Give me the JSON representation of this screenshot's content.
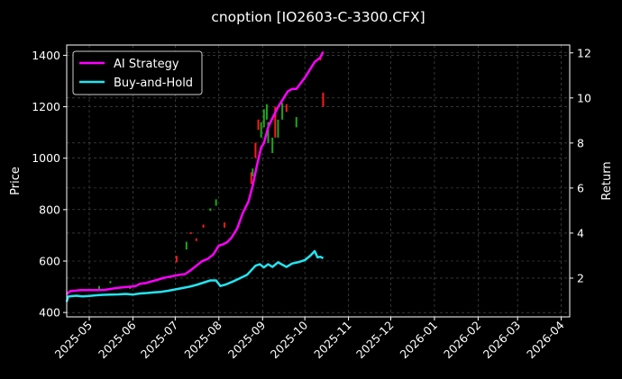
{
  "chart_data": {
    "type": "line",
    "title": "cnoption [IO2603-C-3300.CFX]",
    "xlabel": "",
    "ylabel": "Price",
    "y2label": "Return",
    "x_range": [
      "2025-04-15",
      "2026-04-07"
    ],
    "ylim": [
      383,
      1440
    ],
    "y2lim": [
      0.28,
      12.35
    ],
    "x_ticks": [
      "2025-05",
      "2025-06",
      "2025-07",
      "2025-08",
      "2025-09",
      "2025-10",
      "2025-11",
      "2025-12",
      "2026-01",
      "2026-02",
      "2026-03",
      "2026-04"
    ],
    "y_ticks": [
      400,
      600,
      800,
      1000,
      1200,
      1400
    ],
    "y2_ticks": [
      2,
      4,
      6,
      8,
      10,
      12
    ],
    "grid": true,
    "legend_position": "top-left",
    "colors": {
      "ai": "#ff00ff",
      "bh": "#22e5f2",
      "up": "#1ea51e",
      "down": "#ff1a1a",
      "grid": "#555555",
      "background": "#000000"
    },
    "series": [
      {
        "name": "AI Strategy",
        "axis": "right",
        "x": [
          "2025-04-15",
          "2025-04-16",
          "2025-04-17",
          "2025-04-18",
          "2025-04-22",
          "2025-04-25",
          "2025-05-01",
          "2025-05-08",
          "2025-05-12",
          "2025-05-16",
          "2025-05-20",
          "2025-05-26",
          "2025-05-30",
          "2025-06-03",
          "2025-06-06",
          "2025-06-10",
          "2025-06-14",
          "2025-06-18",
          "2025-06-22",
          "2025-06-26",
          "2025-06-30",
          "2025-07-04",
          "2025-07-08",
          "2025-07-12",
          "2025-07-16",
          "2025-07-20",
          "2025-07-24",
          "2025-07-28",
          "2025-08-01",
          "2025-08-04",
          "2025-08-07",
          "2025-08-10",
          "2025-08-14",
          "2025-08-18",
          "2025-08-22",
          "2025-08-25",
          "2025-08-28",
          "2025-08-31",
          "2025-09-02",
          "2025-09-05",
          "2025-09-08",
          "2025-09-12",
          "2025-09-16",
          "2025-09-19",
          "2025-09-22",
          "2025-09-25",
          "2025-09-28",
          "2025-10-01",
          "2025-10-05",
          "2025-10-08",
          "2025-10-10",
          "2025-10-12",
          "2025-10-14"
        ],
        "values": [
          1.28,
          1.35,
          1.4,
          1.43,
          1.45,
          1.47,
          1.47,
          1.47,
          1.48,
          1.52,
          1.56,
          1.6,
          1.62,
          1.65,
          1.75,
          1.78,
          1.85,
          1.92,
          2.0,
          2.05,
          2.1,
          2.15,
          2.18,
          2.35,
          2.55,
          2.75,
          2.85,
          3.05,
          3.45,
          3.5,
          3.6,
          3.8,
          4.2,
          4.9,
          5.4,
          6.1,
          7.0,
          7.8,
          8.0,
          8.7,
          9.1,
          9.6,
          10.0,
          10.3,
          10.4,
          10.4,
          10.65,
          10.9,
          11.3,
          11.6,
          11.7,
          11.8,
          12.05
        ]
      },
      {
        "name": "Buy-and-Hold",
        "axis": "right",
        "x": [
          "2025-04-15",
          "2025-04-16",
          "2025-04-18",
          "2025-04-22",
          "2025-04-26",
          "2025-05-01",
          "2025-05-06",
          "2025-05-11",
          "2025-05-16",
          "2025-05-22",
          "2025-05-27",
          "2025-06-01",
          "2025-06-06",
          "2025-06-11",
          "2025-06-16",
          "2025-06-21",
          "2025-06-26",
          "2025-07-01",
          "2025-07-06",
          "2025-07-11",
          "2025-07-16",
          "2025-07-21",
          "2025-07-26",
          "2025-07-30",
          "2025-08-02",
          "2025-08-06",
          "2025-08-11",
          "2025-08-16",
          "2025-08-21",
          "2025-08-24",
          "2025-08-27",
          "2025-08-30",
          "2025-09-02",
          "2025-09-05",
          "2025-09-08",
          "2025-09-12",
          "2025-09-15",
          "2025-09-18",
          "2025-09-22",
          "2025-09-26",
          "2025-10-01",
          "2025-10-05",
          "2025-10-08",
          "2025-10-10",
          "2025-10-12",
          "2025-10-14"
        ],
        "values": [
          0.95,
          1.18,
          1.2,
          1.22,
          1.19,
          1.21,
          1.24,
          1.26,
          1.27,
          1.28,
          1.3,
          1.27,
          1.32,
          1.34,
          1.37,
          1.39,
          1.44,
          1.5,
          1.56,
          1.62,
          1.7,
          1.8,
          1.9,
          1.9,
          1.65,
          1.72,
          1.85,
          2.0,
          2.15,
          2.35,
          2.55,
          2.62,
          2.48,
          2.62,
          2.5,
          2.7,
          2.6,
          2.5,
          2.65,
          2.7,
          2.8,
          3.0,
          3.2,
          2.92,
          2.95,
          2.88
        ]
      },
      {
        "name": "",
        "type": "candlestick",
        "axis": "left",
        "candles": [
          {
            "x": "2025-05-08",
            "low": 490,
            "high": 503,
            "dir": "up"
          },
          {
            "x": "2025-05-16",
            "low": 514,
            "high": 522,
            "dir": "up"
          },
          {
            "x": "2025-05-30",
            "low": 492,
            "high": 498,
            "dir": "up"
          },
          {
            "x": "2025-06-09",
            "low": 512,
            "high": 518,
            "dir": "down"
          },
          {
            "x": "2025-07-02",
            "low": 595,
            "high": 620,
            "dir": "down"
          },
          {
            "x": "2025-07-09",
            "low": 645,
            "high": 675,
            "dir": "up"
          },
          {
            "x": "2025-07-12",
            "low": 705,
            "high": 712,
            "dir": "down"
          },
          {
            "x": "2025-07-16",
            "low": 678,
            "high": 688,
            "dir": "down"
          },
          {
            "x": "2025-07-21",
            "low": 730,
            "high": 742,
            "dir": "down"
          },
          {
            "x": "2025-07-26",
            "low": 795,
            "high": 805,
            "dir": "up"
          },
          {
            "x": "2025-07-30",
            "low": 815,
            "high": 840,
            "dir": "up"
          },
          {
            "x": "2025-08-05",
            "low": 730,
            "high": 750,
            "dir": "down"
          },
          {
            "x": "2025-08-24",
            "low": 900,
            "high": 945,
            "dir": "down"
          },
          {
            "x": "2025-08-25",
            "low": 930,
            "high": 960,
            "dir": "up"
          },
          {
            "x": "2025-08-27",
            "low": 1000,
            "high": 1060,
            "dir": "down"
          },
          {
            "x": "2025-08-29",
            "low": 1110,
            "high": 1150,
            "dir": "down"
          },
          {
            "x": "2025-08-31",
            "low": 1080,
            "high": 1140,
            "dir": "up"
          },
          {
            "x": "2025-09-02",
            "low": 1120,
            "high": 1190,
            "dir": "up"
          },
          {
            "x": "2025-09-04",
            "low": 1150,
            "high": 1210,
            "dir": "up"
          },
          {
            "x": "2025-09-05",
            "low": 1060,
            "high": 1140,
            "dir": "up"
          },
          {
            "x": "2025-09-08",
            "low": 1020,
            "high": 1080,
            "dir": "up"
          },
          {
            "x": "2025-09-10",
            "low": 1080,
            "high": 1200,
            "dir": "down"
          },
          {
            "x": "2025-09-12",
            "low": 1080,
            "high": 1150,
            "dir": "up"
          },
          {
            "x": "2025-09-15",
            "low": 1150,
            "high": 1215,
            "dir": "up"
          },
          {
            "x": "2025-09-18",
            "low": 1180,
            "high": 1210,
            "dir": "down"
          },
          {
            "x": "2025-09-25",
            "low": 1120,
            "high": 1160,
            "dir": "up"
          },
          {
            "x": "2025-10-12",
            "low": 1380,
            "high": 1392,
            "dir": "down"
          },
          {
            "x": "2025-10-14",
            "low": 1200,
            "high": 1255,
            "dir": "down"
          }
        ]
      }
    ]
  }
}
